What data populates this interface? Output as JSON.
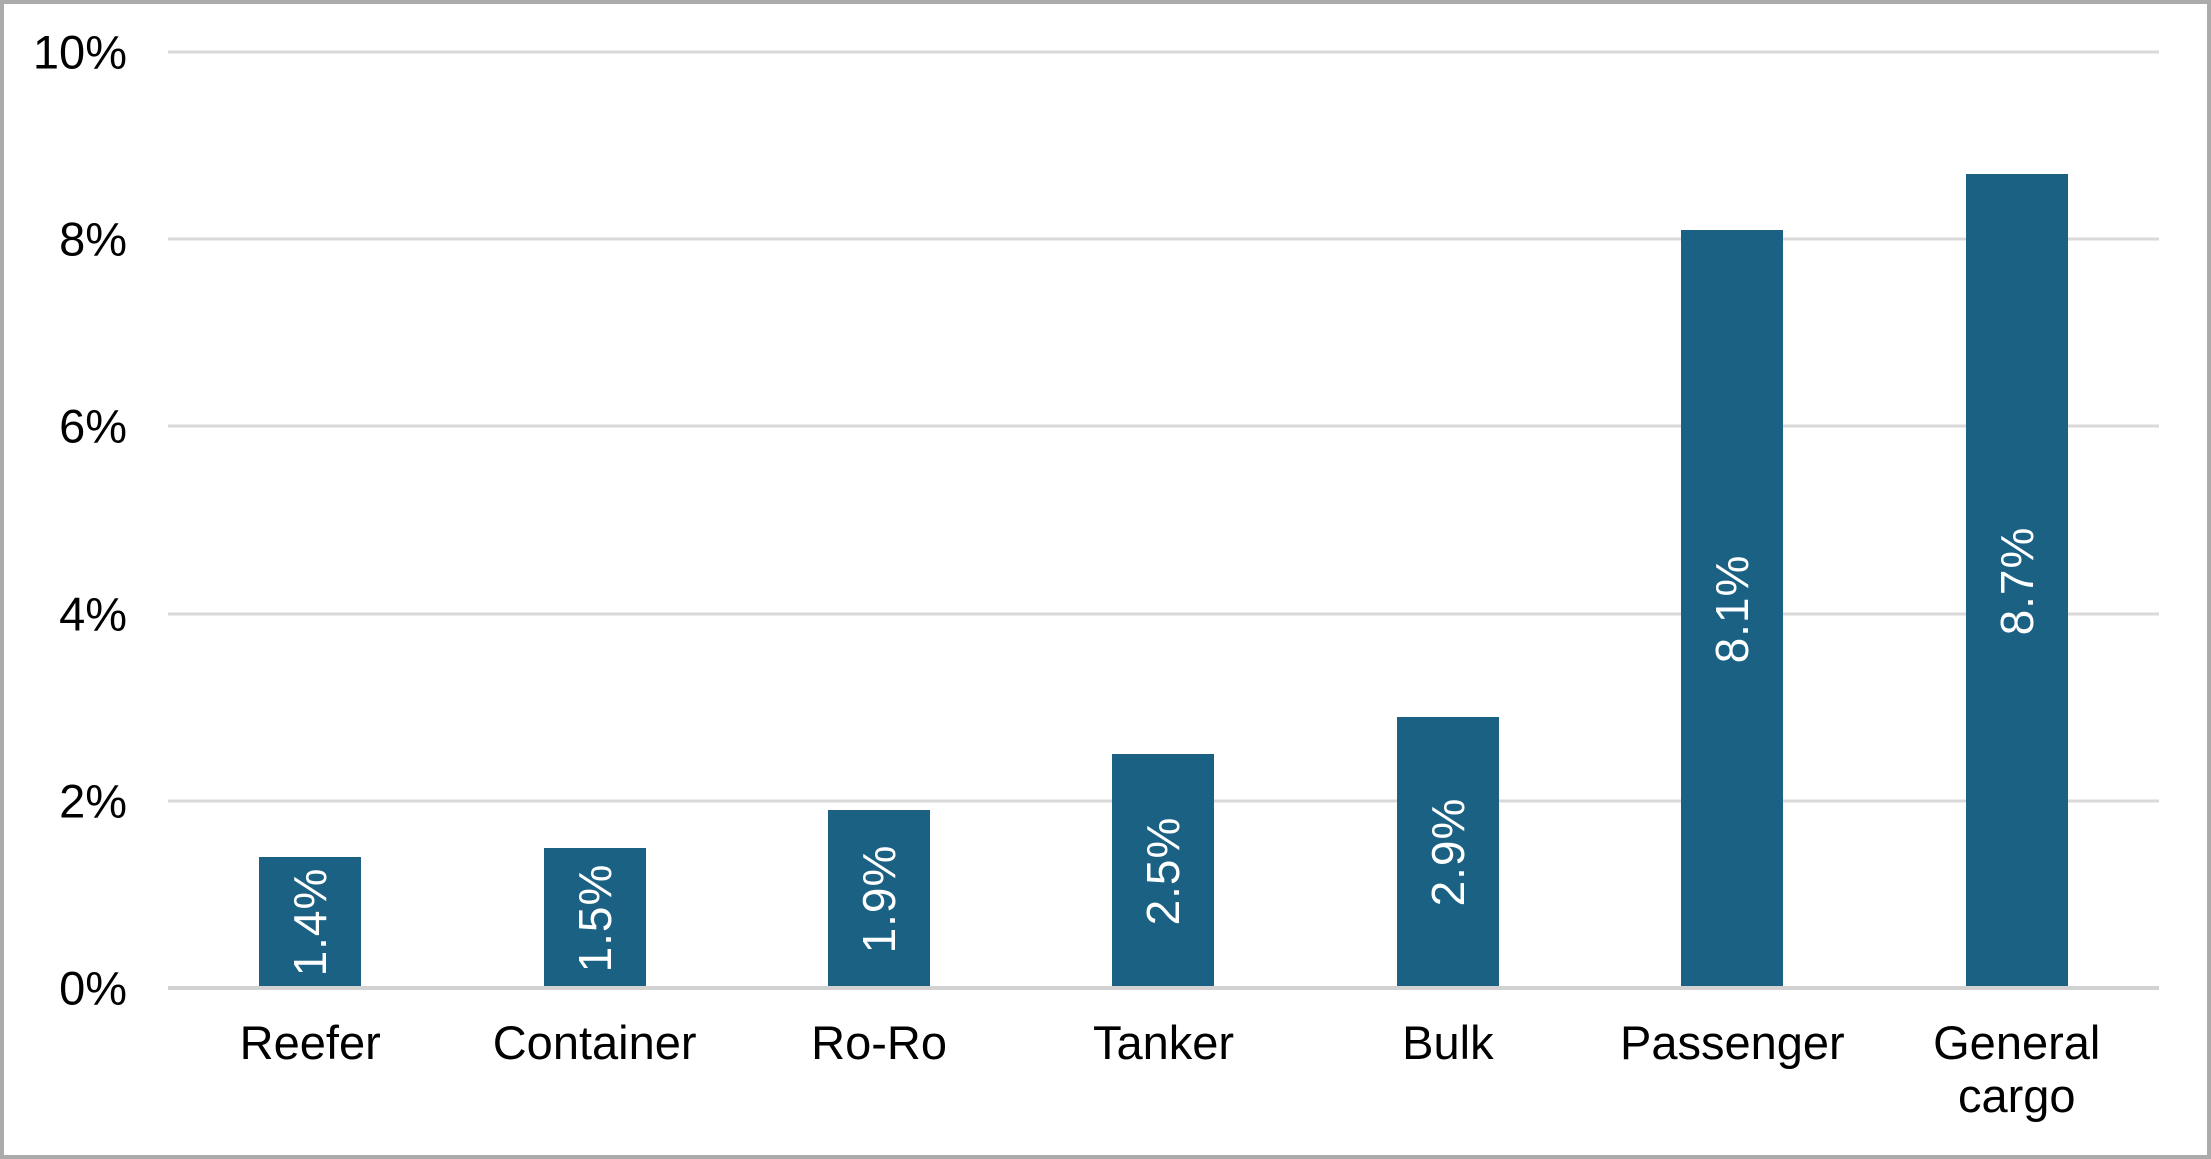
{
  "chart_data": {
    "type": "bar",
    "title": "",
    "xlabel": "",
    "ylabel": "",
    "categories": [
      "Reefer",
      "Container",
      "Ro-Ro",
      "Tanker",
      "Bulk",
      "Passenger",
      "General cargo"
    ],
    "values": [
      1.4,
      1.5,
      1.9,
      2.5,
      2.9,
      8.1,
      8.7
    ],
    "bar_labels": [
      "1.4%",
      "1.5%",
      "1.9%",
      "2.5%",
      "2.9%",
      "8.1%",
      "8.7%"
    ],
    "yticks": [
      0,
      2,
      4,
      6,
      8,
      10
    ],
    "ytick_labels": [
      "0%",
      "2%",
      "4%",
      "6%",
      "8%",
      "10%"
    ],
    "ylim": [
      0,
      10
    ],
    "grid": "horizontal",
    "legend": "none",
    "bar_color": "#1A6183",
    "bar_label_color": "#FFFFFF",
    "text_color": "#000000",
    "gridline_color": "#D9D9D9",
    "axis_line_color": "#D2D2D2",
    "frame_border_color": "#ABABAB",
    "background_color": "#FFFFFF"
  }
}
